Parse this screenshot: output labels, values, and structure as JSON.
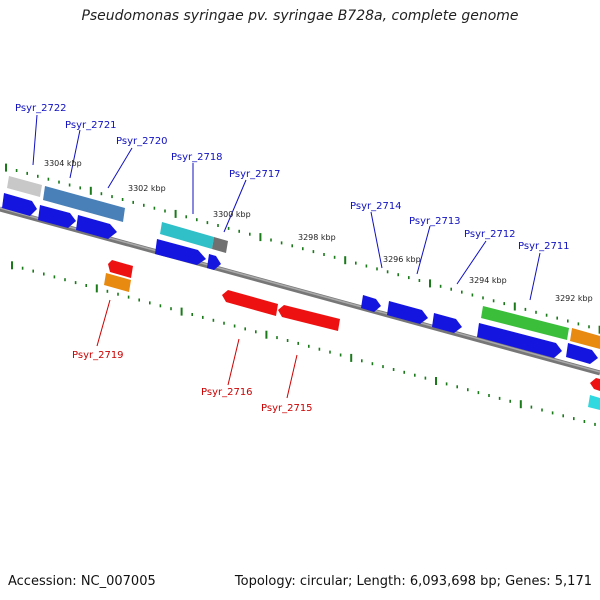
{
  "title": "Pseudomonas syringae pv. syringae B728a, complete genome",
  "footer": {
    "accession": "Accession: NC_007005",
    "info": "Topology: circular; Length: 6,093,698 bp; Genes: 5,171"
  },
  "colors": {
    "backbone": "#888888",
    "tick": "#1a7a1a",
    "forward_label": "#1010c0",
    "reverse_label": "#cc0000",
    "scale_label": "#222222"
  },
  "scale_labels": [
    "3304 kbp",
    "3302 kbp",
    "3300 kbp",
    "3298 kbp",
    "3296 kbp",
    "3294 kbp",
    "3292 kbp"
  ],
  "gene_labels_forward": [
    "Psyr_2722",
    "Psyr_2721",
    "Psyr_2720",
    "Psyr_2718",
    "Psyr_2717",
    "Psyr_2714",
    "Psyr_2713",
    "Psyr_2712",
    "Psyr_2711"
  ],
  "gene_labels_reverse": [
    "Psyr_2719",
    "Psyr_2716",
    "Psyr_2715"
  ]
}
